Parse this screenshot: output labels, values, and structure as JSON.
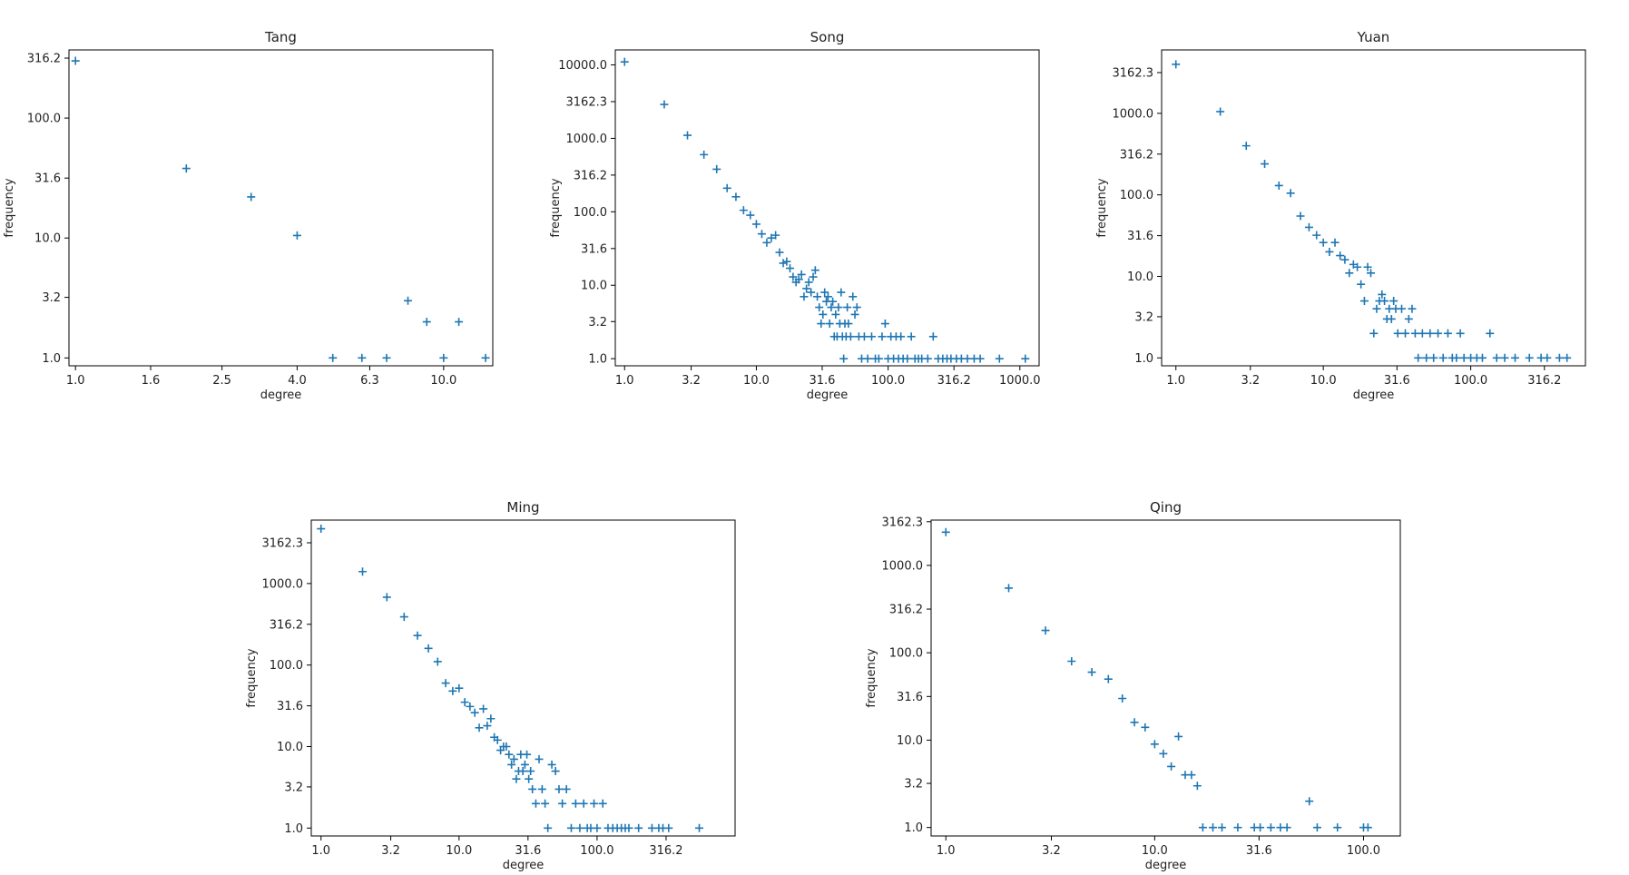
{
  "chart_data": [
    {
      "type": "scatter",
      "title": "Tang",
      "xlabel": "degree",
      "ylabel": "frequency",
      "x_scale": "log",
      "y_scale": "log",
      "xlim": [
        0.96,
        13.6
      ],
      "ylim": [
        0.86,
        370
      ],
      "xticks": [
        1.0,
        1.6,
        2.5,
        4.0,
        6.3,
        10.0
      ],
      "yticks": [
        1.0,
        3.2,
        10.0,
        31.6,
        100.0,
        316.2
      ],
      "tick_labels_x": [
        "1.0",
        "1.6",
        "2.5",
        "4.0",
        "6.3",
        "10.0"
      ],
      "tick_labels_y": [
        "1.0",
        "3.2",
        "10.0",
        "31.6",
        "100.0",
        "316.2"
      ],
      "grid": false,
      "marker": "+",
      "color": "#1f77b4",
      "points": [
        [
          1,
          300
        ],
        [
          2,
          38
        ],
        [
          3,
          22
        ],
        [
          4,
          10.5
        ],
        [
          5,
          1
        ],
        [
          6,
          1
        ],
        [
          7,
          1
        ],
        [
          8,
          3
        ],
        [
          9,
          2
        ],
        [
          10,
          1
        ],
        [
          11,
          2
        ],
        [
          13,
          1
        ]
      ]
    },
    {
      "type": "scatter",
      "title": "Song",
      "xlabel": "degree",
      "ylabel": "frequency",
      "x_scale": "log",
      "y_scale": "log",
      "xlim": [
        0.85,
        1400
      ],
      "ylim": [
        0.8,
        16000
      ],
      "xticks": [
        1.0,
        3.2,
        10.0,
        31.6,
        100.0,
        316.2,
        1000.0
      ],
      "yticks": [
        1.0,
        3.2,
        10.0,
        31.6,
        100.0,
        316.2,
        1000.0,
        3162.3,
        10000.0
      ],
      "tick_labels_x": [
        "1.0",
        "3.2",
        "10.0",
        "31.6",
        "100.0",
        "316.2",
        "1000.0"
      ],
      "tick_labels_y": [
        "1.0",
        "3.2",
        "10.0",
        "31.6",
        "100.0",
        "316.2",
        "1000.0",
        "3162.3",
        "10000.0"
      ],
      "grid": false,
      "marker": "+",
      "color": "#1f77b4",
      "points": [
        [
          1,
          11000
        ],
        [
          2,
          2900
        ],
        [
          3,
          1100
        ],
        [
          4,
          600
        ],
        [
          5,
          380
        ],
        [
          6,
          210
        ],
        [
          7,
          160
        ],
        [
          8,
          105
        ],
        [
          9,
          90
        ],
        [
          10,
          68
        ],
        [
          11,
          50
        ],
        [
          12,
          38
        ],
        [
          13,
          44
        ],
        [
          14,
          48
        ],
        [
          15,
          28
        ],
        [
          16,
          20
        ],
        [
          17,
          21
        ],
        [
          18,
          17
        ],
        [
          19,
          13
        ],
        [
          20,
          11
        ],
        [
          21,
          12
        ],
        [
          22,
          14
        ],
        [
          23,
          7
        ],
        [
          24,
          9
        ],
        [
          25,
          11
        ],
        [
          26,
          8
        ],
        [
          27,
          13
        ],
        [
          28,
          16
        ],
        [
          29,
          7
        ],
        [
          30,
          5
        ],
        [
          31,
          3
        ],
        [
          32,
          4
        ],
        [
          33,
          8
        ],
        [
          34,
          6
        ],
        [
          35,
          7
        ],
        [
          36,
          3
        ],
        [
          37,
          5
        ],
        [
          38,
          6
        ],
        [
          39,
          2
        ],
        [
          40,
          4
        ],
        [
          41,
          2
        ],
        [
          42,
          5
        ],
        [
          43,
          3
        ],
        [
          44,
          8
        ],
        [
          45,
          2
        ],
        [
          46,
          1
        ],
        [
          47,
          3
        ],
        [
          48,
          2
        ],
        [
          49,
          5
        ],
        [
          50,
          3
        ],
        [
          52,
          2
        ],
        [
          54,
          7
        ],
        [
          56,
          4
        ],
        [
          58,
          5
        ],
        [
          60,
          2
        ],
        [
          63,
          1
        ],
        [
          66,
          2
        ],
        [
          70,
          1
        ],
        [
          75,
          2
        ],
        [
          80,
          1
        ],
        [
          85,
          1
        ],
        [
          90,
          2
        ],
        [
          95,
          3
        ],
        [
          100,
          1
        ],
        [
          105,
          2
        ],
        [
          110,
          1
        ],
        [
          115,
          2
        ],
        [
          120,
          1
        ],
        [
          125,
          2
        ],
        [
          130,
          1
        ],
        [
          140,
          1
        ],
        [
          150,
          2
        ],
        [
          160,
          1
        ],
        [
          170,
          1
        ],
        [
          180,
          1
        ],
        [
          200,
          1
        ],
        [
          220,
          2
        ],
        [
          240,
          1
        ],
        [
          260,
          1
        ],
        [
          280,
          1
        ],
        [
          300,
          1
        ],
        [
          330,
          1
        ],
        [
          360,
          1
        ],
        [
          400,
          1
        ],
        [
          450,
          1
        ],
        [
          500,
          1
        ],
        [
          700,
          1
        ],
        [
          1100,
          1
        ]
      ]
    },
    {
      "type": "scatter",
      "title": "Yuan",
      "xlabel": "degree",
      "ylabel": "frequency",
      "x_scale": "log",
      "y_scale": "log",
      "xlim": [
        0.8,
        600
      ],
      "ylim": [
        0.8,
        6000
      ],
      "xticks": [
        1.0,
        3.2,
        10.0,
        31.6,
        100.0,
        316.2
      ],
      "yticks": [
        1.0,
        3.2,
        10.0,
        31.6,
        100.0,
        316.2,
        1000.0,
        3162.3
      ],
      "tick_labels_x": [
        "1.0",
        "3.2",
        "10.0",
        "31.6",
        "100.0",
        "316.2"
      ],
      "tick_labels_y": [
        "1.0",
        "3.2",
        "10.0",
        "31.6",
        "100.0",
        "316.2",
        "1000.0",
        "3162.3"
      ],
      "grid": false,
      "marker": "+",
      "color": "#1f77b4",
      "points": [
        [
          1,
          4000
        ],
        [
          2,
          1050
        ],
        [
          3,
          400
        ],
        [
          4,
          240
        ],
        [
          5,
          130
        ],
        [
          6,
          105
        ],
        [
          7,
          55
        ],
        [
          8,
          40
        ],
        [
          9,
          32
        ],
        [
          10,
          26
        ],
        [
          11,
          20
        ],
        [
          12,
          26
        ],
        [
          13,
          18
        ],
        [
          14,
          16
        ],
        [
          15,
          11
        ],
        [
          16,
          14
        ],
        [
          17,
          13
        ],
        [
          18,
          8
        ],
        [
          19,
          5
        ],
        [
          20,
          13
        ],
        [
          21,
          11
        ],
        [
          22,
          2
        ],
        [
          23,
          4
        ],
        [
          24,
          5
        ],
        [
          25,
          6
        ],
        [
          26,
          5
        ],
        [
          27,
          3
        ],
        [
          28,
          4
        ],
        [
          29,
          3
        ],
        [
          30,
          5
        ],
        [
          31,
          4
        ],
        [
          32,
          2
        ],
        [
          34,
          4
        ],
        [
          36,
          2
        ],
        [
          38,
          3
        ],
        [
          40,
          4
        ],
        [
          42,
          2
        ],
        [
          44,
          1
        ],
        [
          47,
          2
        ],
        [
          50,
          1
        ],
        [
          53,
          2
        ],
        [
          56,
          1
        ],
        [
          60,
          2
        ],
        [
          65,
          1
        ],
        [
          70,
          2
        ],
        [
          75,
          1
        ],
        [
          80,
          1
        ],
        [
          85,
          2
        ],
        [
          90,
          1
        ],
        [
          100,
          1
        ],
        [
          110,
          1
        ],
        [
          120,
          1
        ],
        [
          135,
          2
        ],
        [
          150,
          1
        ],
        [
          170,
          1
        ],
        [
          200,
          1
        ],
        [
          250,
          1
        ],
        [
          300,
          1
        ],
        [
          330,
          1
        ],
        [
          400,
          1
        ],
        [
          450,
          1
        ]
      ]
    },
    {
      "type": "scatter",
      "title": "Ming",
      "xlabel": "degree",
      "ylabel": "frequency",
      "x_scale": "log",
      "y_scale": "log",
      "xlim": [
        0.85,
        1000
      ],
      "ylim": [
        0.8,
        6000
      ],
      "xticks": [
        1.0,
        3.2,
        10.0,
        31.6,
        100.0,
        316.2
      ],
      "yticks": [
        1.0,
        3.2,
        10.0,
        31.6,
        100.0,
        316.2,
        1000.0,
        3162.3
      ],
      "tick_labels_x": [
        "1.0",
        "3.2",
        "10.0",
        "31.6",
        "100.0",
        "316.2"
      ],
      "tick_labels_y": [
        "1.0",
        "3.2",
        "10.0",
        "31.6",
        "100.0",
        "316.2",
        "1000.0",
        "3162.3"
      ],
      "grid": false,
      "marker": "+",
      "color": "#1f77b4",
      "points": [
        [
          1,
          4700
        ],
        [
          2,
          1400
        ],
        [
          3,
          680
        ],
        [
          4,
          390
        ],
        [
          5,
          230
        ],
        [
          6,
          160
        ],
        [
          7,
          110
        ],
        [
          8,
          60
        ],
        [
          9,
          48
        ],
        [
          10,
          52
        ],
        [
          11,
          35
        ],
        [
          12,
          31
        ],
        [
          13,
          26
        ],
        [
          14,
          17
        ],
        [
          15,
          29
        ],
        [
          16,
          18
        ],
        [
          17,
          22
        ],
        [
          18,
          13
        ],
        [
          19,
          12
        ],
        [
          20,
          9
        ],
        [
          21,
          10
        ],
        [
          22,
          10
        ],
        [
          23,
          8
        ],
        [
          24,
          6
        ],
        [
          25,
          7
        ],
        [
          26,
          4
        ],
        [
          27,
          5
        ],
        [
          28,
          8
        ],
        [
          29,
          5
        ],
        [
          30,
          6
        ],
        [
          31,
          8
        ],
        [
          32,
          4
        ],
        [
          33,
          5
        ],
        [
          34,
          3
        ],
        [
          36,
          2
        ],
        [
          38,
          7
        ],
        [
          40,
          3
        ],
        [
          42,
          2
        ],
        [
          44,
          1
        ],
        [
          47,
          6
        ],
        [
          50,
          5
        ],
        [
          53,
          3
        ],
        [
          56,
          2
        ],
        [
          60,
          3
        ],
        [
          65,
          1
        ],
        [
          70,
          2
        ],
        [
          75,
          1
        ],
        [
          80,
          2
        ],
        [
          85,
          1
        ],
        [
          90,
          1
        ],
        [
          95,
          2
        ],
        [
          100,
          1
        ],
        [
          110,
          2
        ],
        [
          120,
          1
        ],
        [
          130,
          1
        ],
        [
          140,
          1
        ],
        [
          150,
          1
        ],
        [
          160,
          1
        ],
        [
          170,
          1
        ],
        [
          200,
          1
        ],
        [
          250,
          1
        ],
        [
          280,
          1
        ],
        [
          300,
          1
        ],
        [
          330,
          1
        ],
        [
          550,
          1
        ]
      ]
    },
    {
      "type": "scatter",
      "title": "Qing",
      "xlabel": "degree",
      "ylabel": "frequency",
      "x_scale": "log",
      "y_scale": "log",
      "xlim": [
        0.85,
        150
      ],
      "ylim": [
        0.8,
        3300
      ],
      "xticks": [
        1.0,
        3.2,
        10.0,
        31.6,
        100.0
      ],
      "yticks": [
        1.0,
        3.2,
        10.0,
        31.6,
        100.0,
        316.2,
        1000.0,
        3162.3
      ],
      "tick_labels_x": [
        "1.0",
        "3.2",
        "10.0",
        "31.6",
        "100.0"
      ],
      "tick_labels_y": [
        "1.0",
        "3.2",
        "10.0",
        "31.6",
        "100.0",
        "316.2",
        "1000.0",
        "3162.3"
      ],
      "grid": false,
      "marker": "+",
      "color": "#1f77b4",
      "points": [
        [
          1,
          2400
        ],
        [
          2,
          550
        ],
        [
          3,
          180
        ],
        [
          4,
          80
        ],
        [
          5,
          60
        ],
        [
          6,
          50
        ],
        [
          7,
          30
        ],
        [
          8,
          16
        ],
        [
          9,
          14
        ],
        [
          10,
          9
        ],
        [
          11,
          7
        ],
        [
          12,
          5
        ],
        [
          13,
          11
        ],
        [
          14,
          4
        ],
        [
          15,
          4
        ],
        [
          16,
          3
        ],
        [
          17,
          1
        ],
        [
          19,
          1
        ],
        [
          21,
          1
        ],
        [
          25,
          1
        ],
        [
          30,
          1
        ],
        [
          32,
          1
        ],
        [
          36,
          1
        ],
        [
          40,
          1
        ],
        [
          43,
          1
        ],
        [
          55,
          2
        ],
        [
          60,
          1
        ],
        [
          75,
          1
        ],
        [
          100,
          1
        ],
        [
          105,
          1
        ]
      ]
    }
  ]
}
